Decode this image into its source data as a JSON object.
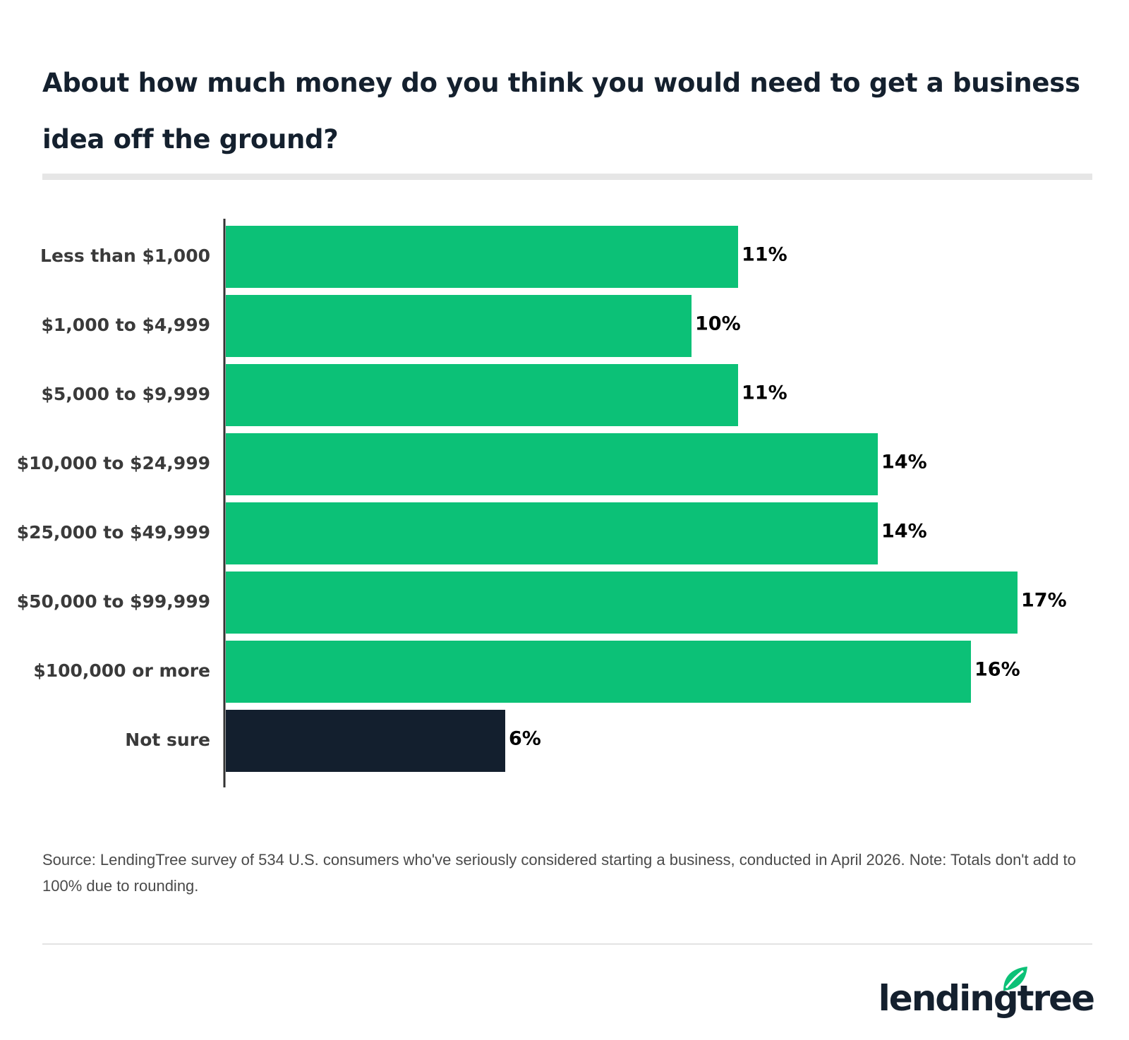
{
  "title": "About how much money do you think you would need to get a business idea off the ground?",
  "source": "Source: LendingTree survey of 534 U.S. consumers who've seriously considered starting a business, conducted in April 2026. Note: Totals don't add to 100% due to rounding.",
  "brand": "lendingtree",
  "colors": {
    "primary_bar": "#0cc177",
    "highlight_bar": "#131f2e",
    "axis": "#333333"
  },
  "chart_data": {
    "type": "bar",
    "orientation": "horizontal",
    "categories": [
      "Less than $1,000",
      "$1,000 to $4,999",
      "$5,000 to $9,999",
      "$10,000 to $24,999",
      "$25,000 to $49,999",
      "$50,000 to $99,999",
      "$100,000 or more",
      "Not sure"
    ],
    "values": [
      11,
      10,
      11,
      14,
      14,
      17,
      16,
      6
    ],
    "value_labels": [
      "11%",
      "10%",
      "11%",
      "14%",
      "14%",
      "17%",
      "16%",
      "6%"
    ],
    "highlight_index": 7,
    "xlim": [
      0,
      17
    ],
    "grid": false,
    "legend": "none"
  }
}
